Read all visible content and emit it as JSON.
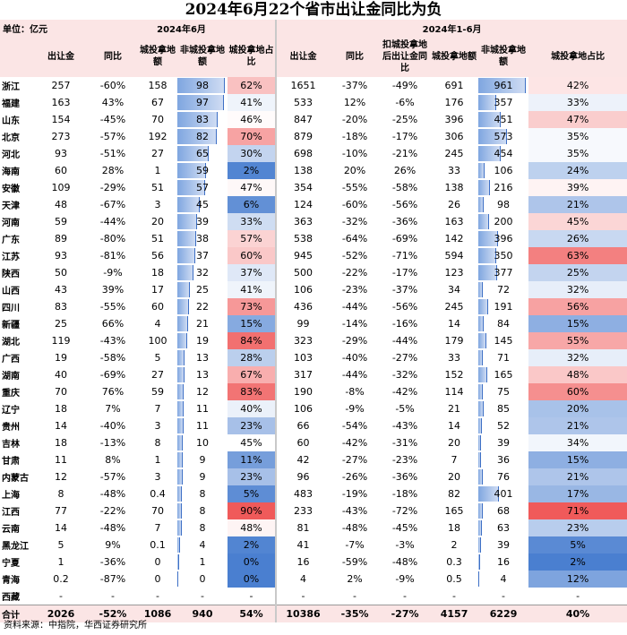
{
  "title": "2024年6月22个省市出让金同比为负",
  "unit_label": "单位：亿元",
  "section_june": "2024年6月",
  "section_ytd": "2024年1-6月",
  "headers": {
    "jun_sale": "出让金",
    "jun_yoy": "同比",
    "jun_city": "城投拿地额",
    "jun_noncity": "非城投拿地额",
    "jun_share": "城投拿地占比",
    "ytd_sale": "出让金",
    "ytd_yoy": "同比",
    "ytd_excl_yoy": "扣城投拿地后出让金同比",
    "ytd_city": "城投拿地额",
    "ytd_noncity": "非城投拿地额",
    "ytd_share": "城投拿地占比"
  },
  "rows": [
    [
      "浙江",
      "257",
      "-60%",
      "158",
      "98",
      "62%",
      "1651",
      "-37%",
      "-49%",
      "691",
      "961",
      "42%"
    ],
    [
      "福建",
      "163",
      "43%",
      "67",
      "97",
      "41%",
      "533",
      "12%",
      "-6%",
      "176",
      "357",
      "33%"
    ],
    [
      "山东",
      "154",
      "-45%",
      "70",
      "83",
      "46%",
      "847",
      "-20%",
      "-25%",
      "396",
      "451",
      "47%"
    ],
    [
      "北京",
      "273",
      "-57%",
      "192",
      "82",
      "70%",
      "879",
      "-18%",
      "-17%",
      "306",
      "573",
      "35%"
    ],
    [
      "河北",
      "93",
      "-51%",
      "27",
      "65",
      "30%",
      "698",
      "-10%",
      "-21%",
      "245",
      "454",
      "35%"
    ],
    [
      "海南",
      "60",
      "28%",
      "1",
      "59",
      "2%",
      "138",
      "20%",
      "26%",
      "33",
      "106",
      "24%"
    ],
    [
      "安徽",
      "109",
      "-29%",
      "51",
      "57",
      "47%",
      "354",
      "-55%",
      "-58%",
      "138",
      "216",
      "39%"
    ],
    [
      "天津",
      "48",
      "-67%",
      "3",
      "45",
      "6%",
      "124",
      "-60%",
      "-56%",
      "26",
      "98",
      "21%"
    ],
    [
      "河南",
      "59",
      "-44%",
      "20",
      "39",
      "33%",
      "363",
      "-32%",
      "-36%",
      "163",
      "200",
      "45%"
    ],
    [
      "广东",
      "89",
      "-80%",
      "51",
      "38",
      "57%",
      "538",
      "-64%",
      "-69%",
      "142",
      "396",
      "26%"
    ],
    [
      "江苏",
      "93",
      "-81%",
      "56",
      "37",
      "60%",
      "945",
      "-52%",
      "-71%",
      "594",
      "350",
      "63%"
    ],
    [
      "陕西",
      "50",
      "-9%",
      "18",
      "32",
      "37%",
      "500",
      "-22%",
      "-17%",
      "123",
      "377",
      "25%"
    ],
    [
      "山西",
      "43",
      "39%",
      "17",
      "25",
      "41%",
      "106",
      "-23%",
      "-37%",
      "34",
      "72",
      "32%"
    ],
    [
      "四川",
      "83",
      "-55%",
      "60",
      "22",
      "73%",
      "436",
      "-44%",
      "-56%",
      "245",
      "191",
      "56%"
    ],
    [
      "新疆",
      "25",
      "66%",
      "4",
      "21",
      "15%",
      "99",
      "-14%",
      "-16%",
      "14",
      "84",
      "15%"
    ],
    [
      "湖北",
      "119",
      "-43%",
      "100",
      "19",
      "84%",
      "323",
      "-29%",
      "-44%",
      "179",
      "145",
      "55%"
    ],
    [
      "广西",
      "19",
      "-58%",
      "5",
      "13",
      "28%",
      "103",
      "-40%",
      "-27%",
      "33",
      "71",
      "32%"
    ],
    [
      "湖南",
      "40",
      "-69%",
      "27",
      "13",
      "67%",
      "317",
      "-44%",
      "-32%",
      "152",
      "165",
      "48%"
    ],
    [
      "重庆",
      "70",
      "76%",
      "59",
      "12",
      "83%",
      "190",
      "-8%",
      "-42%",
      "114",
      "75",
      "60%"
    ],
    [
      "辽宁",
      "18",
      "7%",
      "7",
      "11",
      "40%",
      "106",
      "-9%",
      "-5%",
      "21",
      "85",
      "20%"
    ],
    [
      "贵州",
      "14",
      "-40%",
      "3",
      "11",
      "23%",
      "66",
      "-54%",
      "-43%",
      "14",
      "52",
      "21%"
    ],
    [
      "吉林",
      "18",
      "-13%",
      "8",
      "10",
      "45%",
      "60",
      "-42%",
      "-31%",
      "20",
      "39",
      "34%"
    ],
    [
      "甘肃",
      "11",
      "8%",
      "1",
      "9",
      "11%",
      "42",
      "-27%",
      "-23%",
      "7",
      "36",
      "15%"
    ],
    [
      "内蒙古",
      "12",
      "-57%",
      "3",
      "9",
      "23%",
      "96",
      "-26%",
      "-36%",
      "20",
      "76",
      "21%"
    ],
    [
      "上海",
      "8",
      "-48%",
      "0.4",
      "8",
      "5%",
      "483",
      "-19%",
      "-18%",
      "82",
      "401",
      "17%"
    ],
    [
      "江西",
      "77",
      "-22%",
      "70",
      "8",
      "90%",
      "233",
      "-43%",
      "-72%",
      "165",
      "68",
      "71%"
    ],
    [
      "云南",
      "14",
      "-48%",
      "7",
      "8",
      "48%",
      "81",
      "-48%",
      "-45%",
      "18",
      "63",
      "23%"
    ],
    [
      "黑龙江",
      "5",
      "9%",
      "0.1",
      "4",
      "2%",
      "41",
      "-7%",
      "-3%",
      "2",
      "39",
      "5%"
    ],
    [
      "宁夏",
      "1",
      "-36%",
      "0",
      "1",
      "0%",
      "16",
      "-59%",
      "-48%",
      "0.3",
      "16",
      "2%"
    ],
    [
      "青海",
      "0.2",
      "-87%",
      "0",
      "0",
      "0%",
      "4",
      "2%",
      "-9%",
      "0.5",
      "4",
      "12%"
    ],
    [
      "西藏",
      "-",
      "-",
      "-",
      "-",
      "-",
      "-",
      "-",
      "-",
      "-",
      "-",
      "-"
    ]
  ],
  "total": [
    "合计",
    "2026",
    "-52%",
    "1086",
    "940",
    "54%",
    "10386",
    "-35%",
    "-27%",
    "4157",
    "6229",
    "40%"
  ],
  "footer": "资料来源：中指院，华西证券研究所",
  "colors": {
    "header_bg": "#fbe5e5",
    "heat_low": "#4a7fd0",
    "heat_mid": "#ffffff",
    "heat_high": "#f05a5a",
    "bar_fill": "#7fa6e0"
  }
}
